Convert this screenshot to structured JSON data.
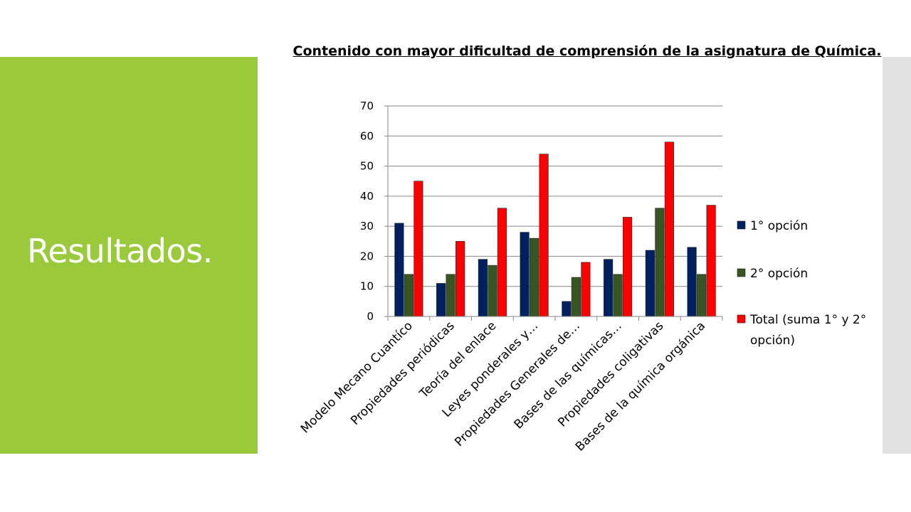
{
  "slide": {
    "title": "Resultados."
  },
  "chart_data": {
    "type": "bar",
    "title": "Contenido con mayor dificultad de comprensión de la asignatura de Química.",
    "xlabel": "",
    "ylabel": "",
    "ylim": [
      0,
      70
    ],
    "yticks": [
      0,
      10,
      20,
      30,
      40,
      50,
      60,
      70
    ],
    "grid": true,
    "legend_position": "right",
    "categories": [
      "Modelo Mecano Cuantíco",
      "Propiedades periódicas",
      "Teoría del enlace",
      "Leyes ponderales y…",
      "Propiedades Generales de…",
      "Bases de las químicas…",
      "Propiedades coligativas",
      "Bases de la química orgánica"
    ],
    "series": [
      {
        "name": "1° opción",
        "color": "#002060",
        "values": [
          31,
          11,
          19,
          28,
          5,
          19,
          22,
          23
        ]
      },
      {
        "name": "2° opción",
        "color": "#375623",
        "values": [
          14,
          14,
          17,
          26,
          13,
          14,
          36,
          14
        ]
      },
      {
        "name": "Total (suma 1° y 2° opción)",
        "color": "#FF0000",
        "values": [
          45,
          25,
          36,
          54,
          18,
          33,
          58,
          37
        ]
      }
    ]
  }
}
